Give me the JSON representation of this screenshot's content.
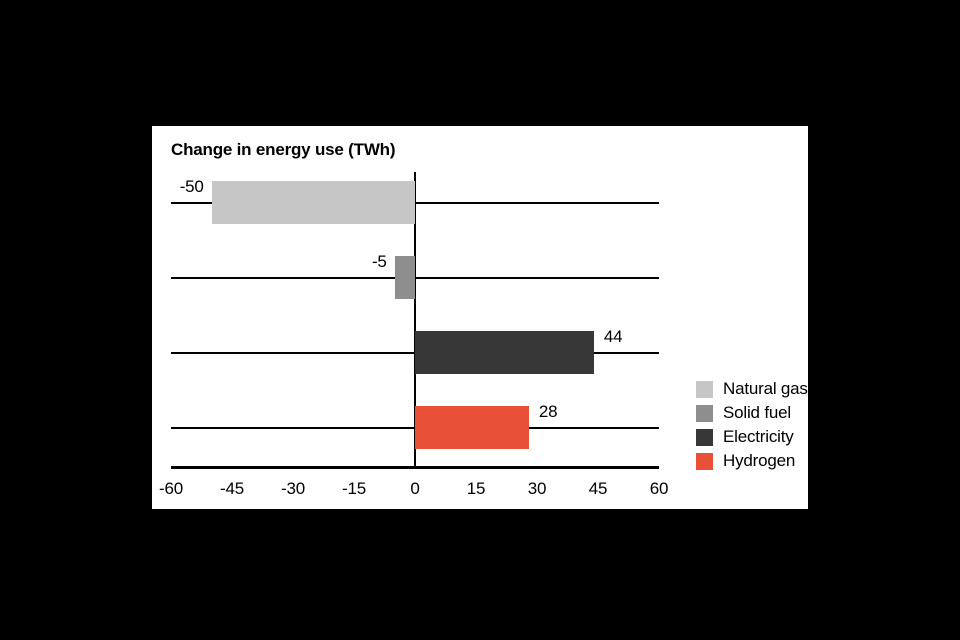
{
  "page": {
    "background_color": "#000000",
    "panel_background_color": "#ffffff"
  },
  "chart_data": {
    "type": "bar",
    "orientation": "horizontal",
    "title": "Change in energy use (TWh)",
    "categories": [
      "Natural gas",
      "Solid fuel",
      "Electricity",
      "Hydrogen"
    ],
    "values": [
      -50,
      -5,
      44,
      28
    ],
    "data_labels": [
      "-50",
      "-5",
      "44",
      "28"
    ],
    "bar_colors": [
      "#c6c6c6",
      "#8e8e8e",
      "#373737",
      "#e85038"
    ],
    "xlim": [
      -60,
      60
    ],
    "x_ticks": [
      -60,
      -45,
      -30,
      -15,
      0,
      15,
      30,
      45,
      60
    ],
    "x_tick_labels": [
      "-60",
      "-45",
      "-30",
      "-15",
      "0",
      "15",
      "30",
      "45",
      "60"
    ],
    "grid": {
      "category_gridlines": true,
      "zero_line": true,
      "bottom_axis": true
    },
    "axis_color": "#000000",
    "text_color": "#000000",
    "legend": {
      "position": "right",
      "entries": [
        {
          "label": "Natural gas",
          "color": "#c6c6c6"
        },
        {
          "label": "Solid fuel",
          "color": "#8e8e8e"
        },
        {
          "label": "Electricity",
          "color": "#373737"
        },
        {
          "label": "Hydrogen",
          "color": "#e85038"
        }
      ]
    }
  }
}
